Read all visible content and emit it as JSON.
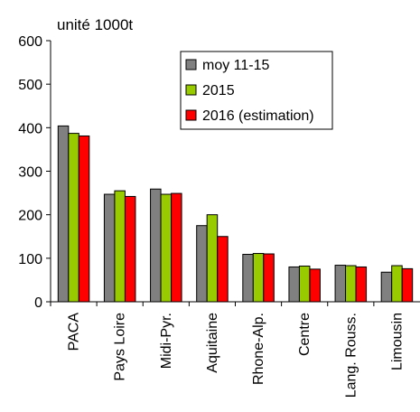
{
  "chart_data": {
    "type": "bar",
    "unit_label": "unité 1000t",
    "categories": [
      "PACA",
      "Pays Loire",
      "Midi-Pyr.",
      "Aquitaine",
      "Rhone-Alp.",
      "Centre",
      "Lang. Rouss.",
      "Limousin"
    ],
    "series": [
      {
        "name": "moy 11-15",
        "color": "#808080",
        "values": [
          404,
          247,
          259,
          175,
          109,
          80,
          84,
          68
        ]
      },
      {
        "name": "2015",
        "color": "#99cc00",
        "values": [
          387,
          255,
          247,
          200,
          111,
          82,
          83,
          83
        ]
      },
      {
        "name": "2016 (estimation)",
        "color": "#ff0000",
        "values": [
          381,
          242,
          249,
          150,
          110,
          75,
          80,
          76
        ]
      }
    ],
    "y_ticks": [
      "0",
      "100",
      "200",
      "300",
      "400",
      "500",
      "600"
    ],
    "ylim": [
      0,
      600
    ],
    "legend_position": "top-right",
    "grid": false
  }
}
